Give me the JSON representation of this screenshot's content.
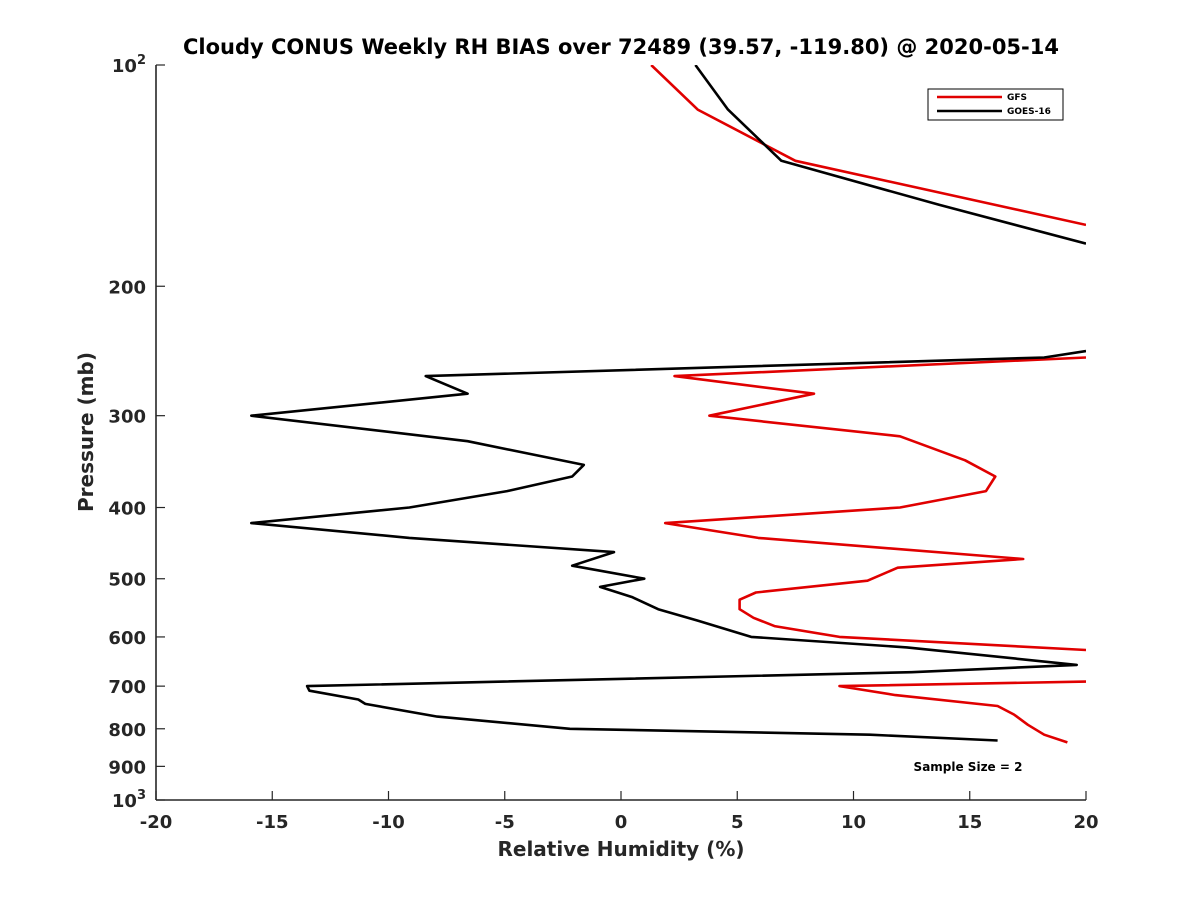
{
  "chart_data": {
    "type": "line",
    "title": "Cloudy CONUS Weekly RH BIAS over 72489 (39.57, -119.80) @ 2020-05-14",
    "xlabel": "Relative Humidity (%)",
    "ylabel": "Pressure (mb)",
    "xlim": [
      -20,
      20
    ],
    "ylim": [
      100,
      1000
    ],
    "y_scale": "log",
    "y_reversed": true,
    "x_ticks": [
      "-20",
      "-15",
      "-10",
      "-5",
      "0",
      "5",
      "10",
      "15",
      "20"
    ],
    "x_tick_values": [
      -20,
      -15,
      -10,
      -5,
      0,
      5,
      10,
      15,
      20
    ],
    "y_ticks": [
      {
        "value": 100,
        "base": "10",
        "exp": "2"
      },
      {
        "value": 200,
        "label": "200"
      },
      {
        "value": 300,
        "label": "300"
      },
      {
        "value": 400,
        "label": "400"
      },
      {
        "value": 500,
        "label": "500"
      },
      {
        "value": 600,
        "label": "600"
      },
      {
        "value": 700,
        "label": "700"
      },
      {
        "value": 800,
        "label": "800"
      },
      {
        "value": 900,
        "label": "900"
      },
      {
        "value": 1000,
        "base": "10",
        "exp": "3"
      }
    ],
    "legend": {
      "position": "top-right"
    },
    "annotation": "Sample Size = 2",
    "series": [
      {
        "name": "GFS",
        "color": "#e00000",
        "points": [
          [
            1.3,
            100
          ],
          [
            3.3,
            115
          ],
          [
            7.5,
            135
          ],
          [
            20,
            165
          ],
          [
            null,
            null
          ],
          [
            20,
            250
          ],
          [
            2.3,
            265
          ],
          [
            8.3,
            280
          ],
          [
            3.8,
            300
          ],
          [
            12,
            320
          ],
          [
            14.8,
            345
          ],
          [
            16.1,
            363
          ],
          [
            15.7,
            380
          ],
          [
            12.0,
            400
          ],
          [
            1.9,
            420
          ],
          [
            5.9,
            440
          ],
          [
            17.3,
            470
          ],
          [
            11.9,
            483
          ],
          [
            10.6,
            503
          ],
          [
            5.8,
            522
          ],
          [
            5.1,
            534
          ],
          [
            5.1,
            550
          ],
          [
            5.7,
            565
          ],
          [
            6.6,
            580
          ],
          [
            9.4,
            600
          ],
          [
            20,
            625
          ],
          [
            null,
            null
          ],
          [
            20,
            690
          ],
          [
            9.4,
            700
          ],
          [
            11.8,
            720
          ],
          [
            16.2,
            745
          ],
          [
            16.9,
            765
          ],
          [
            17.5,
            790
          ],
          [
            18.2,
            815
          ],
          [
            19.2,
            835
          ]
        ]
      },
      {
        "name": "GOES-16",
        "color": "#000000",
        "points": [
          [
            3.2,
            100
          ],
          [
            4.6,
            115
          ],
          [
            6.9,
            135
          ],
          [
            13.7,
            155
          ],
          [
            20,
            175
          ],
          [
            null,
            null
          ],
          [
            20,
            245
          ],
          [
            18.2,
            250
          ],
          [
            -8.4,
            265
          ],
          [
            -6.6,
            280
          ],
          [
            -15.9,
            300
          ],
          [
            -6.6,
            325
          ],
          [
            -1.6,
            350
          ],
          [
            -2.1,
            363
          ],
          [
            -4.9,
            380
          ],
          [
            -9.1,
            400
          ],
          [
            -15.9,
            420
          ],
          [
            -9.1,
            440
          ],
          [
            -0.3,
            460
          ],
          [
            -2.1,
            480
          ],
          [
            1.0,
            500
          ],
          [
            -0.9,
            513
          ],
          [
            0.5,
            530
          ],
          [
            1.6,
            550
          ],
          [
            3.3,
            570
          ],
          [
            5.6,
            600
          ],
          [
            12.3,
            620
          ],
          [
            19.6,
            655
          ],
          [
            12.5,
            670
          ],
          [
            -13.5,
            700
          ],
          [
            -13.4,
            710
          ],
          [
            -11.3,
            730
          ],
          [
            -11.0,
            740
          ],
          [
            -7.9,
            770
          ],
          [
            -2.2,
            800
          ],
          [
            10.7,
            815
          ],
          [
            16.2,
            830
          ]
        ]
      }
    ]
  }
}
